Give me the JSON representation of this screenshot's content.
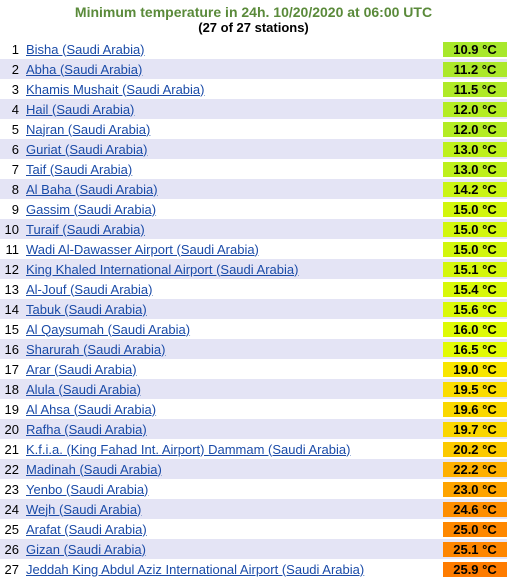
{
  "header": {
    "title": "Minimum temperature in 24h. 10/20/2020 at 06:00 UTC",
    "subtitle": "(27 of 27 stations)"
  },
  "table": {
    "rows": [
      {
        "rank": 1,
        "station": "Bisha (Saudi Arabia)",
        "temp": "10.9 °C",
        "color": "#a8e82c"
      },
      {
        "rank": 2,
        "station": "Abha (Saudi Arabia)",
        "temp": "11.2 °C",
        "color": "#ace82a"
      },
      {
        "rank": 3,
        "station": "Khamis Mushait (Saudi Arabia)",
        "temp": "11.5 °C",
        "color": "#b0ea28"
      },
      {
        "rank": 4,
        "station": "Hail (Saudi Arabia)",
        "temp": "12.0 °C",
        "color": "#b4ec24"
      },
      {
        "rank": 5,
        "station": "Najran (Saudi Arabia)",
        "temp": "12.0 °C",
        "color": "#b4ec24"
      },
      {
        "rank": 6,
        "station": "Guriat (Saudi Arabia)",
        "temp": "13.0 °C",
        "color": "#bef01c"
      },
      {
        "rank": 7,
        "station": "Taif (Saudi Arabia)",
        "temp": "13.0 °C",
        "color": "#bef01c"
      },
      {
        "rank": 8,
        "station": "Al Baha (Saudi Arabia)",
        "temp": "14.2 °C",
        "color": "#caf414"
      },
      {
        "rank": 9,
        "station": "Gassim (Saudi Arabia)",
        "temp": "15.0 °C",
        "color": "#d2f60e"
      },
      {
        "rank": 10,
        "station": "Turaif (Saudi Arabia)",
        "temp": "15.0 °C",
        "color": "#d2f60e"
      },
      {
        "rank": 11,
        "station": "Wadi Al-Dawasser Airport (Saudi Arabia)",
        "temp": "15.0 °C",
        "color": "#d2f60e"
      },
      {
        "rank": 12,
        "station": "King Khaled International Airport (Saudi Arabia)",
        "temp": "15.1 °C",
        "color": "#d4f60c"
      },
      {
        "rank": 13,
        "station": "Al-Jouf (Saudi Arabia)",
        "temp": "15.4 °C",
        "color": "#d8f80a"
      },
      {
        "rank": 14,
        "station": "Tabuk (Saudi Arabia)",
        "temp": "15.6 °C",
        "color": "#daf808"
      },
      {
        "rank": 15,
        "station": "Al Qaysumah (Saudi Arabia)",
        "temp": "16.0 °C",
        "color": "#defa06"
      },
      {
        "rank": 16,
        "station": "Sharurah (Saudi Arabia)",
        "temp": "16.5 °C",
        "color": "#e2fa04"
      },
      {
        "rank": 17,
        "station": "Arar (Saudi Arabia)",
        "temp": "19.0 °C",
        "color": "#f8e600"
      },
      {
        "rank": 18,
        "station": "Alula (Saudi Arabia)",
        "temp": "19.5 °C",
        "color": "#fadc00"
      },
      {
        "rank": 19,
        "station": "Al Ahsa (Saudi Arabia)",
        "temp": "19.6 °C",
        "color": "#fad800"
      },
      {
        "rank": 20,
        "station": "Rafha (Saudi Arabia)",
        "temp": "19.7 °C",
        "color": "#fad600"
      },
      {
        "rank": 21,
        "station": "K.f.i.a. (King Fahad Int. Airport) Dammam (Saudi Arabia)",
        "temp": "20.2 °C",
        "color": "#fcca00"
      },
      {
        "rank": 22,
        "station": "Madinah (Saudi Arabia)",
        "temp": "22.2 °C",
        "color": "#feb000"
      },
      {
        "rank": 23,
        "station": "Yenbo (Saudi Arabia)",
        "temp": "23.0 °C",
        "color": "#fea400"
      },
      {
        "rank": 24,
        "station": "Wejh (Saudi Arabia)",
        "temp": "24.6 °C",
        "color": "#fe8e00"
      },
      {
        "rank": 25,
        "station": "Arafat (Saudi Arabia)",
        "temp": "25.0 °C",
        "color": "#fe8800"
      },
      {
        "rank": 26,
        "station": "Gizan (Saudi Arabia)",
        "temp": "25.1 °C",
        "color": "#fe8600"
      },
      {
        "rank": 27,
        "station": "Jeddah King Abdul Aziz International Airport (Saudi Arabia)",
        "temp": "25.9 °C",
        "color": "#fe7c00"
      }
    ]
  }
}
